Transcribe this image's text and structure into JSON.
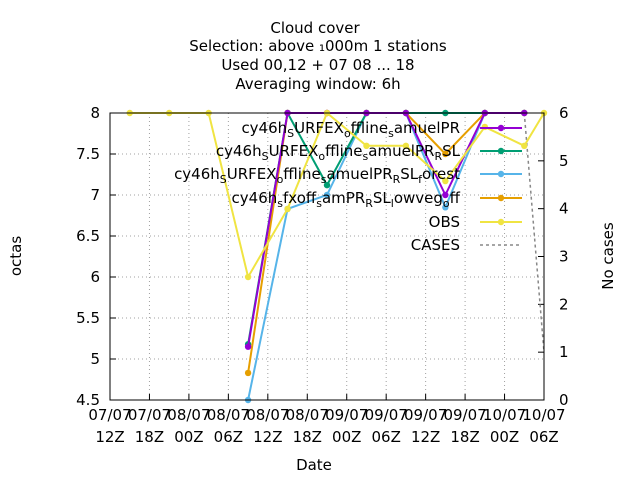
{
  "chart_data": {
    "type": "line",
    "title_lines": [
      "Cloud cover",
      "Selection: above ₁000m      1 stations",
      "Used  00,12  + 07 08 ... 18",
      "Averaging window:  6h"
    ],
    "xlabel": "Date",
    "ylabel": "octas",
    "y2label": "No cases",
    "ylim": [
      4.5,
      8
    ],
    "y2lim": [
      0,
      6
    ],
    "xlim": [
      0,
      66
    ],
    "yticks": [
      4.5,
      5,
      5.5,
      6,
      6.5,
      7,
      7.5,
      8
    ],
    "ytick_labels": [
      "4.5",
      "5",
      "5.5",
      "6",
      "6.5",
      "7",
      "7.5",
      "8"
    ],
    "y2ticks": [
      0,
      1,
      2,
      3,
      4,
      5,
      6
    ],
    "y2tick_labels": [
      "0",
      "1",
      "2",
      "3",
      "4",
      "5",
      "6"
    ],
    "xticks": [
      0,
      6,
      12,
      18,
      24,
      30,
      36,
      42,
      48,
      54,
      60,
      66
    ],
    "xtick_labels": [
      [
        "07/07",
        "12Z"
      ],
      [
        "07/07",
        "18Z"
      ],
      [
        "08/07",
        "00Z"
      ],
      [
        "08/07",
        "06Z"
      ],
      [
        "08/07",
        "12Z"
      ],
      [
        "08/07",
        "18Z"
      ],
      [
        "09/07",
        "00Z"
      ],
      [
        "09/07",
        "06Z"
      ],
      [
        "09/07",
        "12Z"
      ],
      [
        "09/07",
        "18Z"
      ],
      [
        "10/07",
        "00Z"
      ],
      [
        "10/07",
        "06Z"
      ]
    ],
    "grid": true,
    "legend_position": "top-right",
    "series": [
      {
        "name": "cy46h_SURFEX_offline_samuelPR",
        "color": "#9400d3",
        "x": [
          21,
          27,
          33,
          39,
          45,
          51,
          57,
          63
        ],
        "y": [
          5.15,
          8,
          8,
          8,
          8,
          7.0,
          8,
          8
        ]
      },
      {
        "name": "cy46h_SURFEX_offline_samuelPR_RSL",
        "color": "#009e73",
        "x": [
          21,
          27,
          33,
          39,
          45,
          51,
          57,
          63
        ],
        "y": [
          5.18,
          8,
          7.12,
          8,
          8,
          8,
          8,
          8
        ]
      },
      {
        "name": "cy46h_SURFEX_offline_samuelPR_RSL_forest",
        "color": "#56b4e9",
        "x": [
          21,
          27,
          33,
          39,
          45,
          51,
          57,
          63
        ],
        "y": [
          4.5,
          6.83,
          7.0,
          8,
          8,
          6.85,
          8,
          8
        ]
      },
      {
        "name": "cy46h_sfxoff_samPR_RSL_lowveg_off",
        "color": "#e69f00",
        "x": [
          21,
          27,
          33,
          39,
          45,
          51,
          57,
          63
        ],
        "y": [
          4.83,
          8,
          8,
          8,
          8,
          7.5,
          8,
          8
        ]
      },
      {
        "name": "OBS",
        "color": "#f0e442",
        "x": [
          3,
          9,
          15,
          21,
          27,
          33,
          39,
          45,
          51,
          57,
          63,
          66
        ],
        "y": [
          8,
          8,
          8,
          6.0,
          6.83,
          8,
          7.6,
          7.6,
          7.17,
          7.83,
          7.6,
          8
        ]
      },
      {
        "name": "CASES",
        "color": "#888888",
        "dashed": true,
        "axis": "y2",
        "x": [
          63,
          66
        ],
        "y": [
          6,
          1
        ]
      }
    ],
    "legend_labels": [
      [
        "cy46h",
        "S",
        "URFEX",
        "o",
        "ffline",
        "s",
        "amuelPR"
      ],
      [
        "cy46h",
        "S",
        "URFEX",
        "o",
        "ffline",
        "s",
        "amuelPR",
        "R",
        "SL"
      ],
      [
        "cy46h",
        "S",
        "URFEX",
        "o",
        "ffline",
        "s",
        "amuelPR",
        "R",
        "SL",
        "f",
        "orest"
      ],
      [
        "cy46h",
        "s",
        "fxoff",
        "s",
        "amPR",
        "R",
        "SL",
        "l",
        "owveg",
        "o",
        "ff"
      ],
      [
        "OBS"
      ],
      [
        "CASES"
      ]
    ]
  }
}
